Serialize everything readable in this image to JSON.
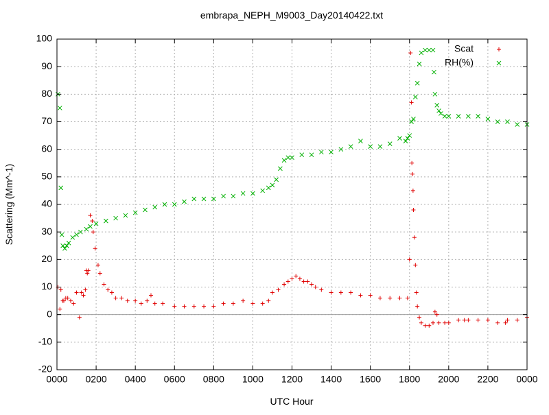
{
  "chart_data": {
    "type": "scatter",
    "title": "embrapa_NEPH_M9003_Day20140422.txt",
    "xlabel": "UTC Hour",
    "ylabel": "Scattering (Mm^-1)",
    "xlim": [
      0,
      2400
    ],
    "ylim": [
      -20,
      100
    ],
    "grid": true,
    "legend_position": "top-right",
    "x_ticks": [
      "0000",
      "0200",
      "0400",
      "0600",
      "0800",
      "1000",
      "1200",
      "1400",
      "1600",
      "1800",
      "2000",
      "2200",
      "0000"
    ],
    "y_ticks": [
      "-20",
      "-10",
      "0",
      "10",
      "20",
      "30",
      "40",
      "50",
      "60",
      "70",
      "80",
      "90",
      "100"
    ],
    "series": [
      {
        "name": "Scat",
        "marker": "+",
        "color": "#e00000",
        "x": [
          5,
          15,
          20,
          30,
          35,
          45,
          55,
          70,
          85,
          100,
          115,
          125,
          135,
          145,
          150,
          155,
          160,
          170,
          180,
          185,
          195,
          210,
          220,
          240,
          260,
          280,
          300,
          330,
          360,
          400,
          430,
          460,
          480,
          500,
          540,
          600,
          650,
          700,
          750,
          800,
          850,
          900,
          950,
          1000,
          1050,
          1080,
          1100,
          1130,
          1160,
          1180,
          1200,
          1220,
          1240,
          1260,
          1280,
          1300,
          1320,
          1350,
          1400,
          1450,
          1500,
          1550,
          1600,
          1650,
          1700,
          1750,
          1790,
          1800,
          1805,
          1810,
          1812,
          1815,
          1818,
          1820,
          1825,
          1830,
          1835,
          1840,
          1850,
          1860,
          1880,
          1900,
          1920,
          1930,
          1940,
          1950,
          1980,
          2000,
          2050,
          2080,
          2100,
          2150,
          2200,
          2250,
          2290,
          2300,
          2350,
          2400
        ],
        "y": [
          10,
          2,
          9,
          5,
          5,
          6,
          6,
          5,
          4,
          8,
          -1,
          8,
          7,
          9,
          16,
          15,
          16,
          36,
          34,
          30,
          24,
          18,
          15,
          11,
          9,
          8,
          6,
          6,
          5,
          5,
          4,
          5,
          7,
          4,
          4,
          3,
          3,
          3,
          3,
          3,
          4,
          4,
          5,
          4,
          4,
          5,
          8,
          9,
          11,
          12,
          13,
          14,
          13,
          12,
          12,
          11,
          10,
          9,
          8,
          8,
          8,
          7,
          7,
          6,
          6,
          6,
          6,
          20,
          95,
          77,
          55,
          51,
          45,
          38,
          28,
          18,
          8,
          3,
          -1,
          -3,
          -4,
          -4,
          -3,
          1,
          0,
          -3,
          -3,
          -3,
          -2,
          -2,
          -2,
          -2,
          -2,
          -3,
          -3,
          -2,
          -2,
          -1
        ]
      },
      {
        "name": "RH(%)",
        "marker": "x",
        "color": "#00b000",
        "x": [
          5,
          15,
          20,
          25,
          30,
          40,
          50,
          60,
          80,
          100,
          120,
          150,
          170,
          200,
          250,
          300,
          350,
          400,
          450,
          500,
          550,
          600,
          650,
          700,
          750,
          800,
          850,
          900,
          950,
          1000,
          1050,
          1080,
          1100,
          1120,
          1140,
          1160,
          1180,
          1200,
          1250,
          1300,
          1350,
          1400,
          1450,
          1500,
          1550,
          1600,
          1650,
          1700,
          1750,
          1780,
          1790,
          1800,
          1810,
          1820,
          1830,
          1840,
          1850,
          1860,
          1880,
          1900,
          1920,
          1925,
          1930,
          1940,
          1950,
          1960,
          1980,
          2000,
          2050,
          2100,
          2150,
          2200,
          2250,
          2300,
          2350,
          2400
        ],
        "y": [
          80,
          75,
          46,
          29,
          25,
          24,
          25,
          26,
          28,
          29,
          30,
          31,
          32,
          33,
          34,
          35,
          36,
          37,
          38,
          39,
          40,
          40,
          41,
          42,
          42,
          42,
          43,
          43,
          44,
          44,
          45,
          46,
          47,
          49,
          53,
          56,
          57,
          57,
          58,
          58,
          59,
          59,
          60,
          61,
          63,
          61,
          61,
          62,
          64,
          63,
          64,
          65,
          70,
          71,
          79,
          84,
          91,
          95,
          96,
          96,
          96,
          88,
          80,
          76,
          74,
          73,
          72,
          72,
          72,
          72,
          72,
          71,
          70,
          70,
          69,
          69
        ]
      }
    ]
  }
}
